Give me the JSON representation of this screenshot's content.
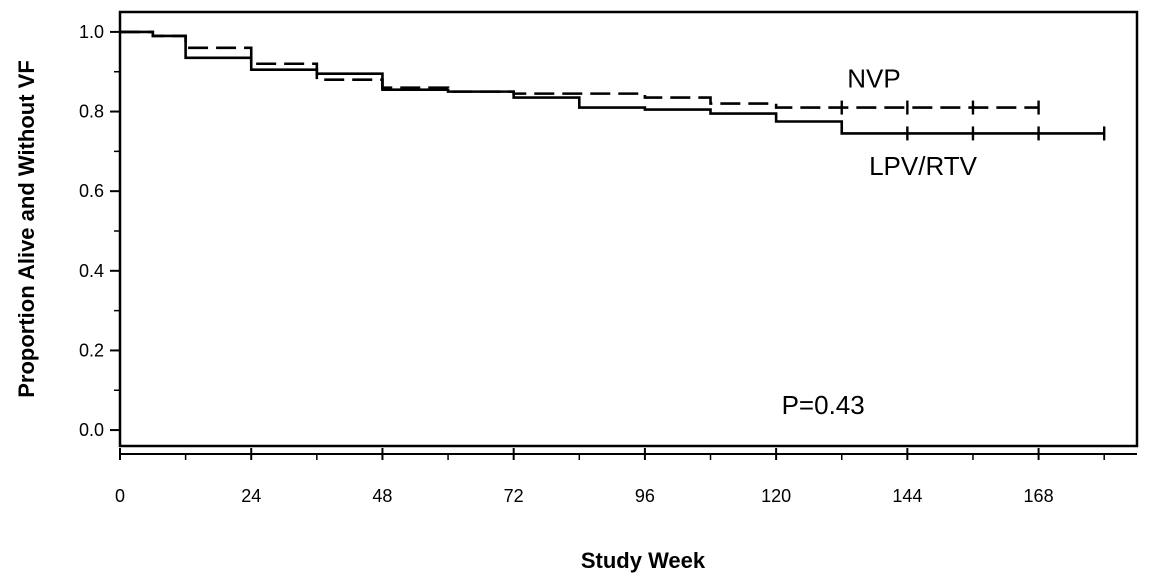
{
  "chart_data": {
    "type": "line",
    "subtype": "kaplan-meier step",
    "xlabel": "Study Week",
    "ylabel": "Proportion Alive and Without VF",
    "xlim": [
      0,
      186
    ],
    "ylim": [
      -0.04,
      1.05
    ],
    "xticks": [
      0,
      24,
      48,
      72,
      96,
      120,
      144,
      168
    ],
    "xtick_labels": [
      "0",
      "24",
      "48",
      "72",
      "96",
      "120",
      "144",
      "168"
    ],
    "yticks": [
      0.0,
      0.2,
      0.4,
      0.6,
      0.8,
      1.0
    ],
    "ytick_labels": [
      "0.0",
      "0.2",
      "0.4",
      "0.6",
      "0.8",
      "1.0"
    ],
    "grid": false,
    "series": [
      {
        "name": "NVP",
        "line_style": "dashed",
        "steps": [
          {
            "x": 0,
            "y": 1.0
          },
          {
            "x": 6,
            "y": 0.99
          },
          {
            "x": 12,
            "y": 0.96
          },
          {
            "x": 24,
            "y": 0.92
          },
          {
            "x": 36,
            "y": 0.88
          },
          {
            "x": 48,
            "y": 0.86
          },
          {
            "x": 60,
            "y": 0.85
          },
          {
            "x": 72,
            "y": 0.845
          },
          {
            "x": 84,
            "y": 0.845
          },
          {
            "x": 96,
            "y": 0.835
          },
          {
            "x": 108,
            "y": 0.82
          },
          {
            "x": 120,
            "y": 0.81
          }
        ],
        "end_x": 168,
        "censored_x": [
          132,
          144,
          156,
          168
        ]
      },
      {
        "name": "LPV/RTV",
        "line_style": "solid",
        "steps": [
          {
            "x": 0,
            "y": 1.0
          },
          {
            "x": 6,
            "y": 0.99
          },
          {
            "x": 12,
            "y": 0.935
          },
          {
            "x": 24,
            "y": 0.905
          },
          {
            "x": 36,
            "y": 0.895
          },
          {
            "x": 48,
            "y": 0.855
          },
          {
            "x": 60,
            "y": 0.85
          },
          {
            "x": 72,
            "y": 0.835
          },
          {
            "x": 84,
            "y": 0.81
          },
          {
            "x": 96,
            "y": 0.805
          },
          {
            "x": 108,
            "y": 0.795
          },
          {
            "x": 120,
            "y": 0.775
          },
          {
            "x": 132,
            "y": 0.745
          }
        ],
        "end_x": 180,
        "censored_x": [
          144,
          156,
          168,
          180
        ]
      }
    ],
    "annotations": [
      {
        "text": "NVP",
        "x": 133,
        "y": 0.86
      },
      {
        "text": "LPV/RTV",
        "x": 137,
        "y": 0.64
      },
      {
        "text": "P=0.43",
        "x": 121,
        "y": 0.04
      }
    ]
  }
}
